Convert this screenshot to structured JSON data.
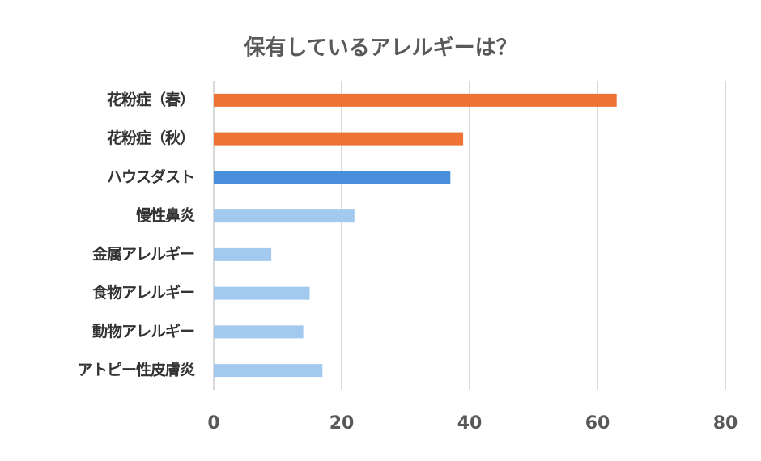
{
  "chart_data": {
    "type": "bar",
    "orientation": "horizontal",
    "title": "保有しているアレルギーは？",
    "categories": [
      "花粉症（春）",
      "花粉症（秋）",
      "ハウスダスト",
      "慢性鼻炎",
      "金属アレルギー",
      "食物アレルギー",
      "動物アレルギー",
      "アトピー性皮膚炎"
    ],
    "values": [
      63,
      39,
      37,
      22,
      9,
      15,
      14,
      17
    ],
    "colors": [
      "#ed7233",
      "#ed7233",
      "#4a8fdb",
      "#a4c9ef",
      "#a4c9ef",
      "#a4c9ef",
      "#a4c9ef",
      "#a4c9ef"
    ],
    "xlim": [
      0,
      80
    ],
    "xticks": [
      0,
      20,
      40,
      60,
      80
    ],
    "grid": true
  }
}
